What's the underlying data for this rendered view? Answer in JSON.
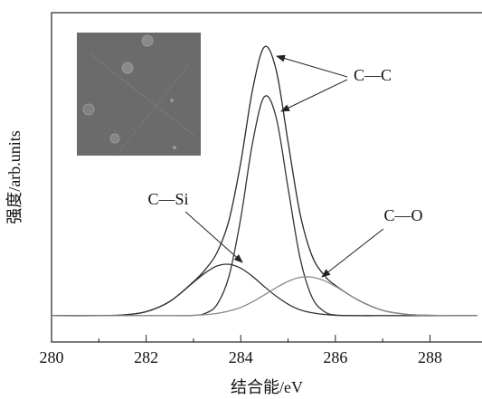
{
  "chart_data": {
    "type": "line",
    "x_label": "结合能/eV",
    "y_label": "强度/arb.units",
    "x": [
      280,
      281,
      281.5,
      282,
      282.5,
      283,
      283.25,
      283.5,
      283.75,
      284,
      284.25,
      284.5,
      284.75,
      285,
      285.25,
      285.5,
      285.75,
      286,
      286.5,
      287,
      287.5,
      288,
      289
    ],
    "series": [
      {
        "color": "#2a2a2a",
        "values": [
          8,
          8,
          8.2,
          9.2,
          12.3,
          18.3,
          22.0,
          27.2,
          36.9,
          54.5,
          76.6,
          89.6,
          82.5,
          60.7,
          39.2,
          26.4,
          20.5,
          17.2,
          12.6,
          9.6,
          8.4,
          8.1,
          8
        ]
      },
      {
        "color": "#333333",
        "values": [
          8,
          8,
          8,
          8,
          8,
          8.1,
          8.7,
          11.4,
          19.9,
          37.6,
          60.5,
          74.5,
          68.1,
          46.8,
          25.8,
          13.8,
          9.4,
          8.2,
          8,
          8,
          8,
          8,
          8
        ]
      },
      {
        "color": "#333333",
        "values": [
          8,
          8,
          8.2,
          9.2,
          12.3,
          18.1,
          21.0,
          23.1,
          23.6,
          22.4,
          19.9,
          16.8,
          13.9,
          11.5,
          9.8,
          8.9,
          8.4,
          8.1,
          8,
          8,
          8,
          8,
          8
        ]
      },
      {
        "color": "#8a8a8a",
        "values": [
          8,
          8,
          8,
          8,
          8,
          8.1,
          8.3,
          8.7,
          9.4,
          10.5,
          12.2,
          14.3,
          16.5,
          18.4,
          19.6,
          19.7,
          18.7,
          16.9,
          12.6,
          9.6,
          8.4,
          8.1,
          8
        ]
      }
    ],
    "annotations": [
      "C—C",
      "C—Si",
      "C—O"
    ],
    "xlim": [
      280,
      289.1
    ],
    "xticks": [
      280,
      282,
      284,
      286,
      288
    ],
    "ylim": [
      0,
      100
    ]
  }
}
